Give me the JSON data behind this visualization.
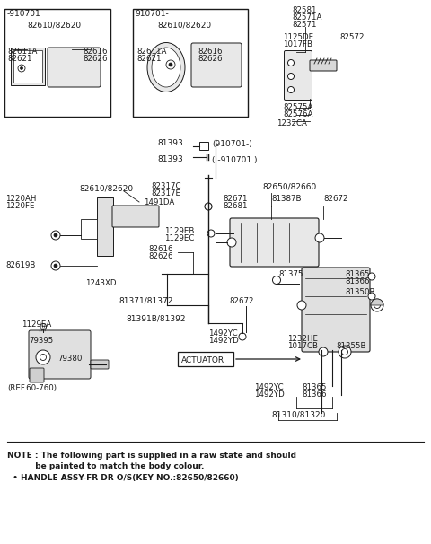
{
  "bg_color": "#ffffff",
  "line_color": "#1a1a1a",
  "text_color": "#1a1a1a",
  "note_line1": "NOTE : The following part is supplied in a raw state and should",
  "note_line2": "          be painted to match the body colour.",
  "note_line3": "  • HANDLE ASSY-FR DR O/S(KEY NO.:82650/82660)"
}
